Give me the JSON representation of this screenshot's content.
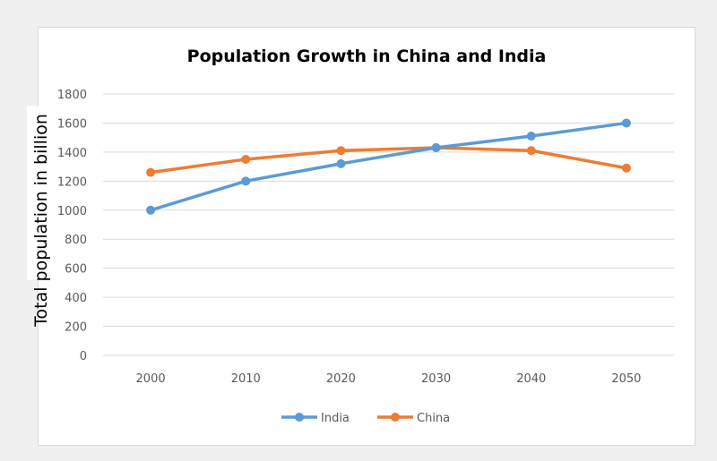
{
  "chart_data": {
    "type": "line",
    "title": "Population Growth in China and India",
    "xlabel": "",
    "ylabel": "Total population in billion",
    "categories": [
      "2000",
      "2010",
      "2020",
      "2030",
      "2040",
      "2050"
    ],
    "yticks": [
      "0",
      "200",
      "400",
      "600",
      "800",
      "1000",
      "1200",
      "1400",
      "1600",
      "1800"
    ],
    "ylim": [
      0,
      1800
    ],
    "grid": true,
    "legend": "bottom",
    "series": [
      {
        "name": "India",
        "color": "#5b9bd5",
        "values": [
          1000,
          1200,
          1320,
          1430,
          1510,
          1600
        ]
      },
      {
        "name": "China",
        "color": "#ed7d31",
        "values": [
          1260,
          1350,
          1410,
          1430,
          1410,
          1290
        ]
      }
    ]
  }
}
